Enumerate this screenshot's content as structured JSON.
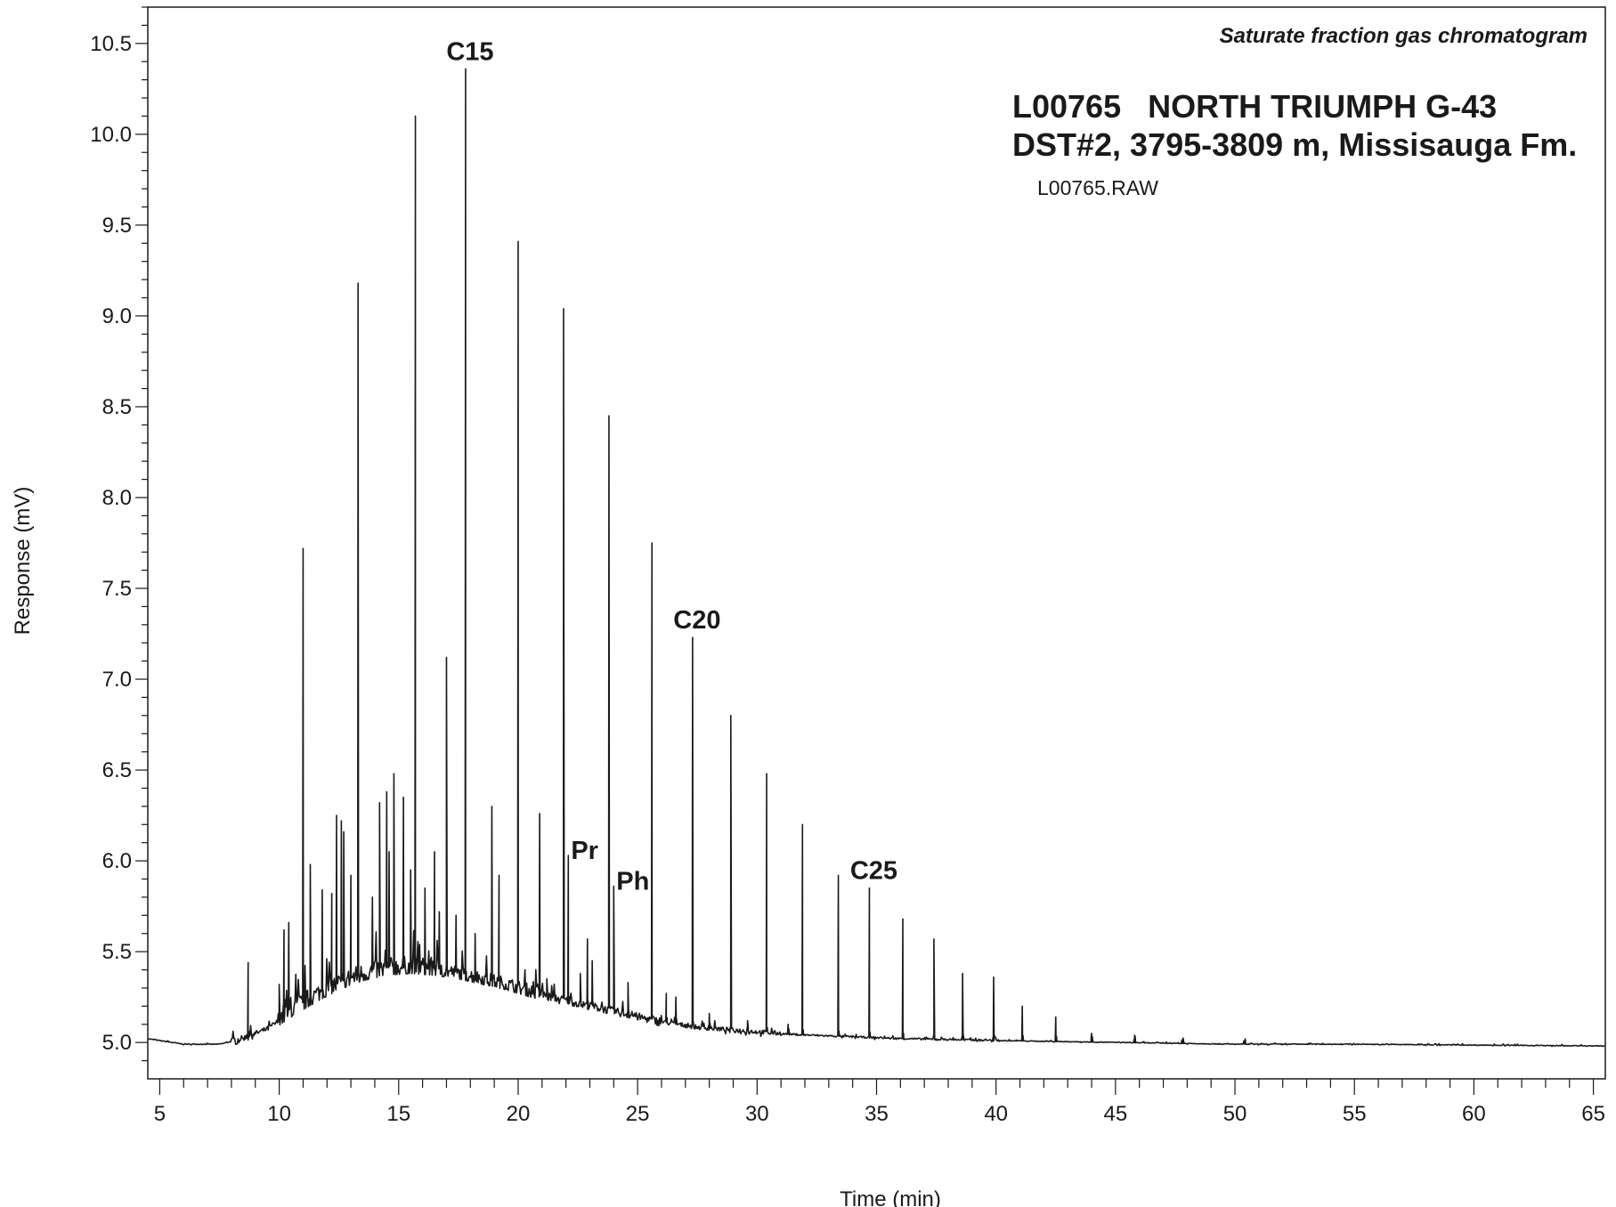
{
  "chart_data": {
    "type": "line",
    "subtitle": "Saturate fraction gas chromatogram",
    "title_line1": "L00765   NORTH TRIUMPH G-43",
    "title_line2": "DST#2, 3795-3809 m, Missisauga Fm.",
    "file_label": "L00765.RAW",
    "xlabel": "Time (min)",
    "ylabel": "Response (mV)",
    "xlim": [
      4.5,
      65.5
    ],
    "ylim": [
      4.8,
      10.7
    ],
    "x_ticks": [
      5,
      10,
      15,
      20,
      25,
      30,
      35,
      40,
      45,
      50,
      55,
      60,
      65
    ],
    "x_tick_labels": [
      "5",
      "10",
      "15",
      "20",
      "25",
      "30",
      "35",
      "40",
      "45",
      "50",
      "55",
      "60",
      "65"
    ],
    "y_ticks": [
      5.0,
      5.5,
      6.0,
      6.5,
      7.0,
      7.5,
      8.0,
      8.5,
      9.0,
      9.5,
      10.0,
      10.5
    ],
    "y_tick_labels": [
      "5.0",
      "5.5",
      "6.0",
      "6.5",
      "7.0",
      "7.5",
      "8.0",
      "8.5",
      "9.0",
      "9.5",
      "10.0",
      "10.5"
    ],
    "grid": false,
    "line_color": "#1a1a1a",
    "baseline": [
      [
        4.5,
        5.02
      ],
      [
        6.0,
        4.99
      ],
      [
        7.5,
        4.99
      ],
      [
        8.5,
        5.02
      ],
      [
        9.5,
        5.07
      ],
      [
        10.5,
        5.16
      ],
      [
        11.5,
        5.24
      ],
      [
        12.5,
        5.31
      ],
      [
        13.5,
        5.36
      ],
      [
        14.5,
        5.39
      ],
      [
        15.5,
        5.4
      ],
      [
        16.5,
        5.39
      ],
      [
        17.5,
        5.37
      ],
      [
        18.5,
        5.34
      ],
      [
        19.5,
        5.31
      ],
      [
        20.5,
        5.27
      ],
      [
        21.5,
        5.24
      ],
      [
        22.5,
        5.21
      ],
      [
        23.5,
        5.18
      ],
      [
        24.5,
        5.15
      ],
      [
        25.5,
        5.12
      ],
      [
        26.5,
        5.1
      ],
      [
        27.5,
        5.08
      ],
      [
        28.5,
        5.07
      ],
      [
        29.5,
        5.06
      ],
      [
        30.5,
        5.05
      ],
      [
        32.0,
        5.04
      ],
      [
        34.0,
        5.03
      ],
      [
        36.0,
        5.02
      ],
      [
        40.0,
        5.01
      ],
      [
        45.0,
        5.0
      ],
      [
        50.0,
        4.99
      ],
      [
        55.0,
        4.99
      ],
      [
        65.5,
        4.98
      ]
    ],
    "peaks": [
      [
        8.7,
        5.44
      ],
      [
        10.0,
        5.32
      ],
      [
        10.2,
        5.62
      ],
      [
        10.4,
        5.66
      ],
      [
        11.0,
        7.72
      ],
      [
        11.3,
        5.98
      ],
      [
        11.8,
        5.84
      ],
      [
        12.2,
        5.82
      ],
      [
        12.4,
        6.25
      ],
      [
        12.6,
        6.22
      ],
      [
        12.7,
        6.16
      ],
      [
        13.0,
        5.92
      ],
      [
        13.3,
        9.18
      ],
      [
        13.9,
        5.8
      ],
      [
        14.2,
        6.32
      ],
      [
        14.5,
        6.38
      ],
      [
        14.6,
        6.05
      ],
      [
        14.8,
        6.48
      ],
      [
        15.2,
        6.35
      ],
      [
        15.5,
        5.95
      ],
      [
        15.7,
        10.1
      ],
      [
        16.1,
        5.85
      ],
      [
        16.5,
        6.05
      ],
      [
        16.7,
        5.72
      ],
      [
        17.0,
        7.12
      ],
      [
        17.4,
        5.7
      ],
      [
        17.8,
        10.36
      ],
      [
        18.2,
        5.6
      ],
      [
        18.9,
        6.3
      ],
      [
        19.2,
        5.92
      ],
      [
        20.0,
        9.41
      ],
      [
        20.9,
        6.26
      ],
      [
        21.2,
        5.35
      ],
      [
        21.9,
        9.04
      ],
      [
        22.1,
        6.03
      ],
      [
        22.6,
        5.38
      ],
      [
        22.9,
        5.57
      ],
      [
        23.1,
        5.45
      ],
      [
        23.8,
        8.45
      ],
      [
        24.0,
        5.86
      ],
      [
        24.6,
        5.33
      ],
      [
        25.6,
        7.75
      ],
      [
        26.2,
        5.27
      ],
      [
        26.6,
        5.25
      ],
      [
        27.3,
        7.23
      ],
      [
        28.0,
        5.16
      ],
      [
        28.9,
        6.8
      ],
      [
        29.6,
        5.12
      ],
      [
        30.4,
        6.48
      ],
      [
        31.3,
        5.1
      ],
      [
        31.9,
        6.2
      ],
      [
        33.4,
        5.92
      ],
      [
        34.7,
        5.85
      ],
      [
        36.1,
        5.68
      ],
      [
        37.4,
        5.57
      ],
      [
        38.6,
        5.38
      ],
      [
        39.9,
        5.36
      ],
      [
        41.1,
        5.2
      ],
      [
        42.5,
        5.14
      ],
      [
        44.0,
        5.05
      ],
      [
        45.8,
        5.04
      ],
      [
        47.8,
        5.01
      ],
      [
        50.4,
        5.0
      ]
    ],
    "annotations": [
      {
        "text": "C15",
        "x": 17.8,
        "y": 10.36
      },
      {
        "text": "Pr",
        "x": 22.1,
        "y": 6.03
      },
      {
        "text": "Ph",
        "x": 24.0,
        "y": 5.86
      },
      {
        "text": "C20",
        "x": 27.3,
        "y": 7.23
      },
      {
        "text": "C25",
        "x": 34.7,
        "y": 5.85
      }
    ]
  }
}
